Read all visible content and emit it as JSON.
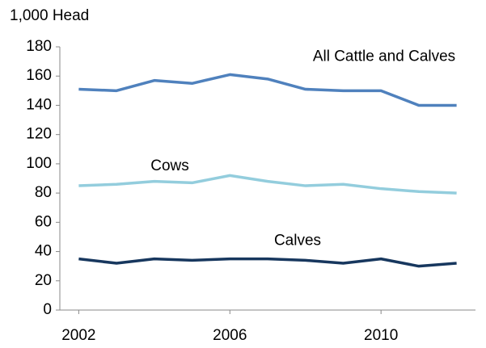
{
  "chart_data": {
    "type": "line",
    "y_label": "1,000 Head",
    "x": [
      2002,
      2003,
      2004,
      2005,
      2006,
      2007,
      2008,
      2009,
      2010,
      2011,
      2012
    ],
    "xlim": [
      2001.5,
      2012.5
    ],
    "xticks": [
      2002,
      2006,
      2010
    ],
    "ylim": [
      0,
      180
    ],
    "yticks": [
      0,
      20,
      40,
      60,
      80,
      100,
      120,
      140,
      160,
      180
    ],
    "grid": false,
    "series": [
      {
        "name": "All Cattle and Calves",
        "color": "#4f81bd",
        "values": [
          151,
          150,
          157,
          155,
          161,
          158,
          151,
          150,
          150,
          140,
          140
        ]
      },
      {
        "name": "Cows",
        "color": "#93cddd",
        "values": [
          85,
          86,
          88,
          87,
          92,
          88,
          85,
          86,
          83,
          81,
          80
        ]
      },
      {
        "name": "Calves",
        "color": "#17375e",
        "values": [
          35,
          32,
          35,
          34,
          35,
          35,
          34,
          32,
          35,
          30,
          32
        ]
      }
    ]
  }
}
